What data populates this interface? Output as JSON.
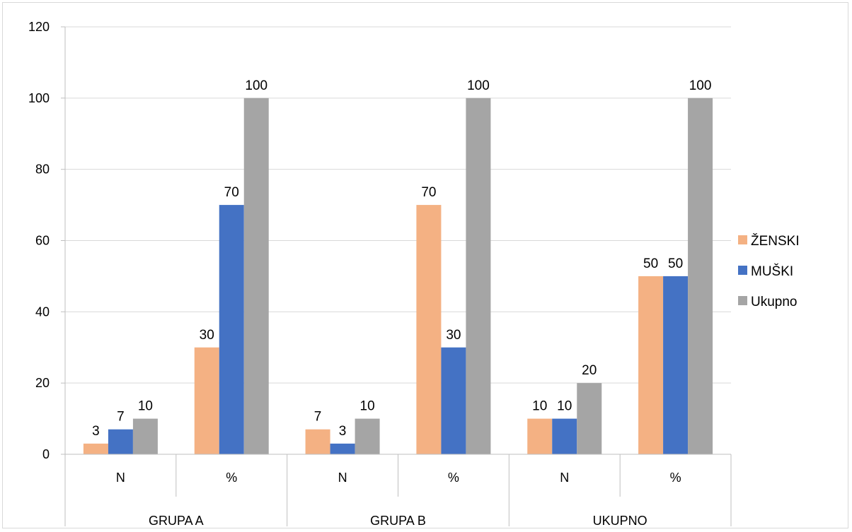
{
  "chart_data": {
    "type": "bar",
    "title": "",
    "xlabel": "",
    "ylabel": "",
    "ylim": [
      0,
      120
    ],
    "yticks": [
      0,
      20,
      40,
      60,
      80,
      100,
      120
    ],
    "grid": true,
    "legend_position": "right",
    "categories": [
      {
        "label": "N",
        "group": "GRUPA A"
      },
      {
        "label": "%",
        "group": "GRUPA A"
      },
      {
        "label": "N",
        "group": "GRUPA B"
      },
      {
        "label": "%",
        "group": "GRUPA B"
      },
      {
        "label": "N",
        "group": "UKUPNO"
      },
      {
        "label": "%",
        "group": "UKUPNO"
      }
    ],
    "groups": [
      "GRUPA A",
      "GRUPA B",
      "UKUPNO"
    ],
    "series": [
      {
        "name": "ŽENSKI",
        "color": "#F4B183",
        "values": [
          3,
          30,
          7,
          70,
          10,
          50
        ]
      },
      {
        "name": "MUŠKI",
        "color": "#4472C4",
        "values": [
          7,
          70,
          3,
          30,
          10,
          50
        ]
      },
      {
        "name": "Ukupno",
        "color": "#A5A5A5",
        "values": [
          10,
          100,
          10,
          100,
          20,
          100
        ]
      }
    ]
  }
}
